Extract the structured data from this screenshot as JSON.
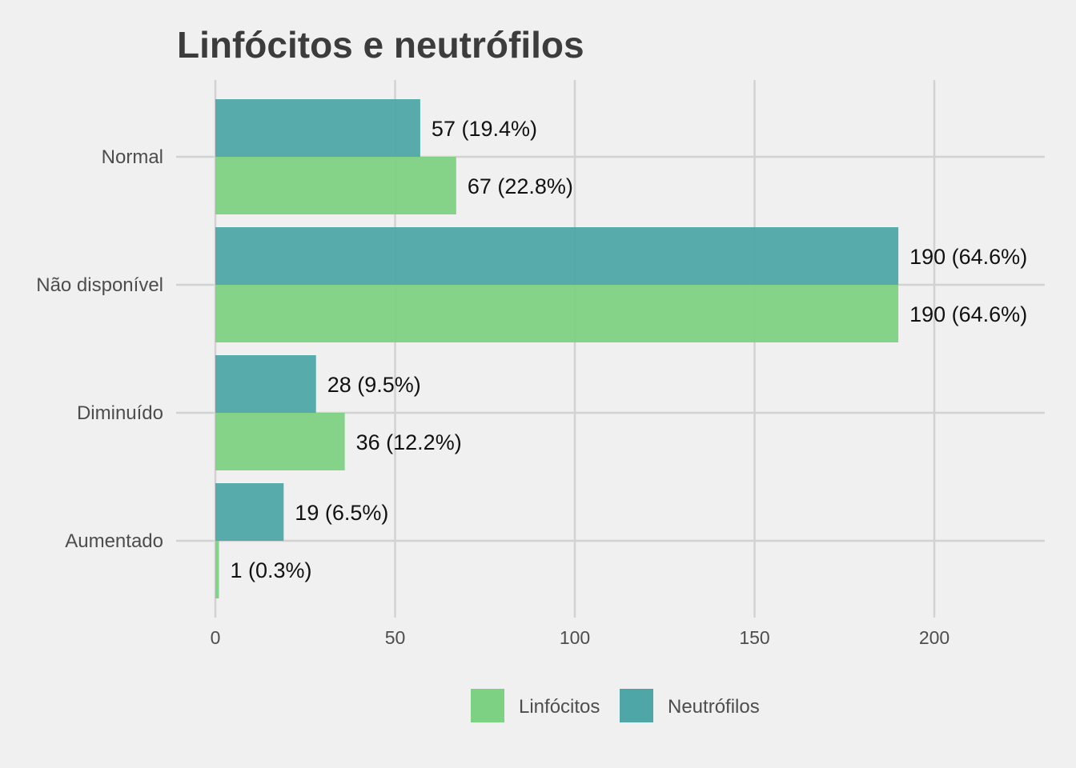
{
  "chart_data": {
    "type": "bar",
    "orientation": "horizontal",
    "title": "Linfócitos e neutrófilos",
    "xlabel": "",
    "ylabel": "",
    "categories": [
      "Normal",
      "Não disponível",
      "Diminuído",
      "Aumentado"
    ],
    "series": [
      {
        "name": "Linfócitos",
        "color": "#7dd183",
        "values": [
          67,
          190,
          36,
          1
        ],
        "labels": [
          "67 (22.8%)",
          "190 (64.6%)",
          "36 (12.2%)",
          "1 (0.3%)"
        ]
      },
      {
        "name": "Neutrófilos",
        "color": "#4fa6a6",
        "values": [
          57,
          190,
          28,
          19
        ],
        "labels": [
          "57 (19.4%)",
          "190 (64.6%)",
          "28 (9.5%)",
          "19 (6.5%)"
        ]
      }
    ],
    "xticks": [
      0,
      50,
      100,
      150,
      200
    ],
    "xtick_labels": [
      "0",
      "50",
      "100",
      "150",
      "200"
    ],
    "xlim": [
      0,
      230
    ],
    "grid": true,
    "legend_position": "bottom"
  }
}
